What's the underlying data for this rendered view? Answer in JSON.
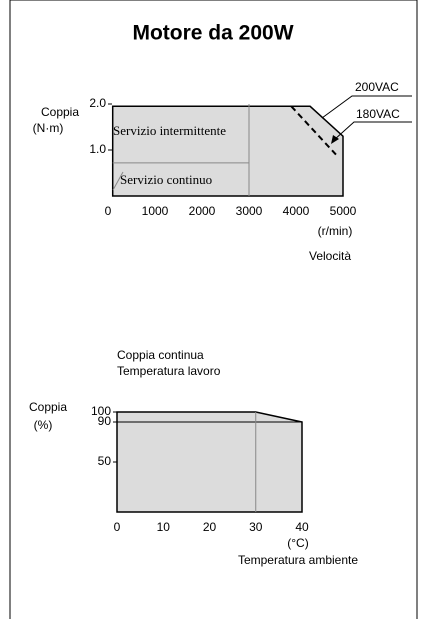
{
  "title": "Motore da 200W",
  "chart_data": [
    {
      "type": "area",
      "ylabel": [
        "Coppia",
        "(N·m)"
      ],
      "xlabel": [
        "(r/min)",
        "Velocità"
      ],
      "xlim": [
        0,
        5000
      ],
      "xticks": [
        0,
        1000,
        2000,
        3000,
        4000,
        5000
      ],
      "ylim": [
        0,
        2
      ],
      "yticks": [
        {
          "value": 1,
          "label": "1.0"
        },
        {
          "value": 2,
          "label": "2.0"
        }
      ],
      "series": [
        {
          "name": "200VAC",
          "color": "#000000",
          "x": [
            100,
            4300,
            5000,
            5000
          ],
          "values": [
            1.95,
            1.95,
            1.3,
            0
          ]
        },
        {
          "name": "180VAC",
          "color": "#000000",
          "dashed": true,
          "x": [
            3900,
            4850
          ],
          "values": [
            1.95,
            0.9
          ]
        }
      ],
      "regions": [
        {
          "name": "Servizio intermittente"
        },
        {
          "name": "Servizio continuo",
          "x": [
            100,
            3000
          ],
          "values": [
            0.72,
            0.72
          ]
        }
      ],
      "vlines": [
        3000
      ]
    },
    {
      "type": "area",
      "title": [
        "Coppia continua",
        "Temperatura lavoro"
      ],
      "ylabel": [
        "Coppia",
        "(%)"
      ],
      "xlabel": [
        "(°C)",
        "Temperatura ambiente"
      ],
      "xlim": [
        0,
        40
      ],
      "xticks": [
        0,
        10,
        20,
        30,
        40
      ],
      "ylim": [
        0,
        100
      ],
      "yticks": [
        50,
        90,
        100
      ],
      "series": [
        {
          "name": null,
          "color": "#000000",
          "x": [
            0,
            30,
            40,
            40
          ],
          "values": [
            100,
            100,
            90,
            0
          ]
        }
      ],
      "hlines": [
        90
      ],
      "vlines": [
        30
      ]
    }
  ]
}
